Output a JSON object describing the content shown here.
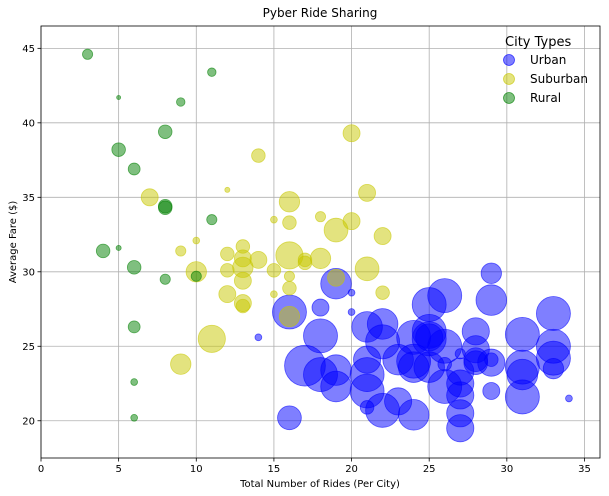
{
  "chart_data": {
    "type": "scatter",
    "title": "Pyber Ride Sharing",
    "xlabel": "Total Number of Rides (Per City)",
    "ylabel": "Average Fare ($)",
    "xlim": [
      0,
      36
    ],
    "ylim": [
      17.5,
      46.5
    ],
    "xticks": [
      0,
      5,
      10,
      15,
      20,
      25,
      30,
      35
    ],
    "yticks": [
      20,
      25,
      30,
      35,
      40,
      45
    ],
    "grid": true,
    "legend": {
      "title": "City Types",
      "placement": "top-right",
      "entries": [
        "Urban",
        "Suburban",
        "Rural"
      ]
    },
    "point_format": [
      "rides",
      "avg_fare",
      "relative_size"
    ],
    "series": [
      {
        "name": "Urban",
        "color": "#0000ff",
        "points": [
          [
            14,
            25.6,
            0.2
          ],
          [
            16,
            27.3,
            1.0
          ],
          [
            16,
            20.2,
            0.7
          ],
          [
            17,
            23.7,
            1.2
          ],
          [
            18,
            23.1,
            1.0
          ],
          [
            18,
            25.7,
            1.0
          ],
          [
            18,
            27.6,
            0.5
          ],
          [
            19,
            29.2,
            0.9
          ],
          [
            19,
            23.4,
            0.9
          ],
          [
            19,
            22.3,
            0.9
          ],
          [
            20,
            27.3,
            0.2
          ],
          [
            20,
            28.6,
            0.2
          ],
          [
            21,
            26.3,
            0.9
          ],
          [
            21,
            24.1,
            0.8
          ],
          [
            21,
            23.1,
            1.0
          ],
          [
            21,
            22.0,
            1.0
          ],
          [
            21,
            20.9,
            0.4
          ],
          [
            22,
            26.5,
            0.9
          ],
          [
            22,
            25.3,
            1.0
          ],
          [
            22,
            20.7,
            1.0
          ],
          [
            23,
            24.1,
            0.9
          ],
          [
            23,
            21.3,
            0.8
          ],
          [
            24,
            25.6,
            1.0
          ],
          [
            24,
            24.0,
            1.0
          ],
          [
            24,
            23.6,
            0.9
          ],
          [
            24,
            20.4,
            0.9
          ],
          [
            25,
            27.8,
            1.0
          ],
          [
            25,
            26.0,
            1.0
          ],
          [
            25,
            25.5,
            1.0
          ],
          [
            25,
            23.6,
            0.9
          ],
          [
            25,
            25.6,
            0.8
          ],
          [
            26,
            28.4,
            1.0
          ],
          [
            26,
            25.0,
            1.0
          ],
          [
            26,
            22.3,
            1.0
          ],
          [
            26,
            23.8,
            0.4
          ],
          [
            27,
            24.5,
            0.3
          ],
          [
            27,
            23.3,
            0.8
          ],
          [
            27,
            22.5,
            0.8
          ],
          [
            27,
            21.7,
            0.8
          ],
          [
            27,
            20.5,
            0.8
          ],
          [
            27,
            19.5,
            0.8
          ],
          [
            28,
            26.0,
            0.8
          ],
          [
            28,
            24.8,
            0.8
          ],
          [
            28,
            24.1,
            0.7
          ],
          [
            28,
            23.9,
            0.7
          ],
          [
            29,
            29.9,
            0.6
          ],
          [
            29,
            28.1,
            0.9
          ],
          [
            29,
            24.1,
            0.4
          ],
          [
            29,
            23.9,
            0.8
          ],
          [
            29,
            22.0,
            0.5
          ],
          [
            31,
            25.8,
            1.0
          ],
          [
            31,
            23.6,
            1.0
          ],
          [
            31,
            23.1,
            0.9
          ],
          [
            31,
            21.6,
            1.0
          ],
          [
            33,
            27.2,
            1.0
          ],
          [
            33,
            25.0,
            1.0
          ],
          [
            33,
            24.2,
            1.0
          ],
          [
            33,
            23.5,
            0.6
          ],
          [
            34,
            21.5,
            0.2
          ]
        ]
      },
      {
        "name": "Suburban",
        "color": "#c8c800",
        "points": [
          [
            7,
            35.0,
            0.5
          ],
          [
            9,
            31.4,
            0.3
          ],
          [
            9,
            23.8,
            0.6
          ],
          [
            10,
            32.1,
            0.2
          ],
          [
            10,
            30.0,
            0.6
          ],
          [
            11,
            25.5,
            0.8
          ],
          [
            12,
            35.5,
            0.15
          ],
          [
            12,
            31.2,
            0.4
          ],
          [
            12,
            30.1,
            0.4
          ],
          [
            12,
            28.5,
            0.5
          ],
          [
            13,
            31.7,
            0.4
          ],
          [
            13,
            30.9,
            0.5
          ],
          [
            13,
            30.3,
            0.6
          ],
          [
            13,
            29.4,
            0.5
          ],
          [
            13,
            27.9,
            0.5
          ],
          [
            13,
            27.7,
            0.4
          ],
          [
            14,
            37.8,
            0.4
          ],
          [
            14,
            30.8,
            0.5
          ],
          [
            15,
            33.5,
            0.2
          ],
          [
            15,
            30.1,
            0.4
          ],
          [
            15,
            28.5,
            0.2
          ],
          [
            16,
            34.7,
            0.6
          ],
          [
            16,
            33.3,
            0.4
          ],
          [
            16,
            31.1,
            0.8
          ],
          [
            16,
            29.7,
            0.3
          ],
          [
            16,
            28.9,
            0.4
          ],
          [
            16,
            27.0,
            0.6
          ],
          [
            17,
            30.8,
            0.4
          ],
          [
            17,
            30.6,
            0.4
          ],
          [
            18,
            33.7,
            0.3
          ],
          [
            18,
            30.9,
            0.6
          ],
          [
            19,
            32.8,
            0.7
          ],
          [
            19,
            29.6,
            0.5
          ],
          [
            20,
            39.3,
            0.5
          ],
          [
            20,
            33.4,
            0.5
          ],
          [
            21,
            35.3,
            0.5
          ],
          [
            21,
            30.2,
            0.7
          ],
          [
            22,
            32.4,
            0.5
          ],
          [
            22,
            28.6,
            0.4
          ]
        ]
      },
      {
        "name": "Rural",
        "color": "#008000",
        "points": [
          [
            3,
            44.6,
            0.3
          ],
          [
            4,
            31.4,
            0.4
          ],
          [
            5,
            41.7,
            0.1
          ],
          [
            5,
            38.2,
            0.4
          ],
          [
            5,
            31.6,
            0.15
          ],
          [
            6,
            36.9,
            0.35
          ],
          [
            6,
            30.3,
            0.4
          ],
          [
            6,
            26.3,
            0.35
          ],
          [
            6,
            22.6,
            0.2
          ],
          [
            6,
            20.2,
            0.2
          ],
          [
            8,
            39.4,
            0.4
          ],
          [
            8,
            34.4,
            0.4
          ],
          [
            8,
            34.3,
            0.4
          ],
          [
            8,
            29.5,
            0.3
          ],
          [
            9,
            41.4,
            0.25
          ],
          [
            10,
            29.7,
            0.3
          ],
          [
            11,
            43.4,
            0.25
          ],
          [
            11,
            33.5,
            0.3
          ]
        ]
      }
    ]
  }
}
